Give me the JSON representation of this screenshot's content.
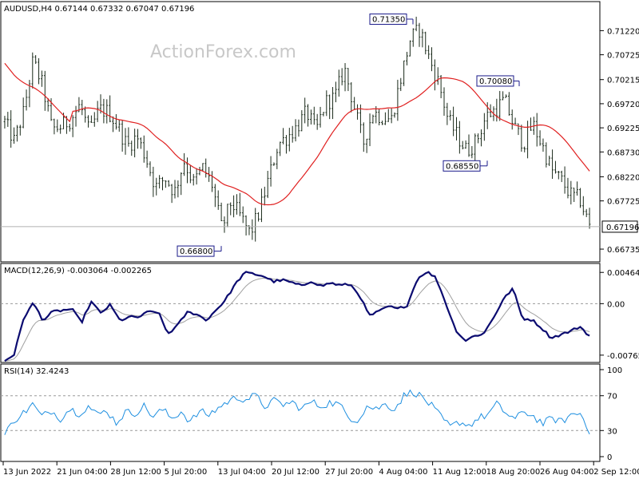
{
  "watermark": "ActionForex.com",
  "colors": {
    "ma": "#e02020",
    "macd": "#0b0b70",
    "signal": "#a0a0a0",
    "rsi": "#1e8fe0",
    "box": "#1a1a8a"
  },
  "chart_data": [
    {
      "type": "candlestick",
      "title": "AUDUSD,H4  0.67144 0.67332 0.67047 0.67196",
      "ylim": [
        0.6649,
        0.718
      ],
      "yticks": [
        "0.71220",
        "0.70725",
        "0.70215",
        "0.69720",
        "0.69225",
        "0.68730",
        "0.68220",
        "0.67725",
        "0.66735"
      ],
      "current_price": "0.67196",
      "annotations": [
        {
          "label": "0.71350",
          "value": 0.7135
        },
        {
          "label": "0.70080",
          "value": 0.7008
        },
        {
          "label": "0.68550",
          "value": 0.6855
        },
        {
          "label": "0.66800",
          "value": 0.668
        }
      ],
      "close_path": [
        0.6935,
        0.6895,
        0.6955,
        0.706,
        0.701,
        0.692,
        0.6925,
        0.694,
        0.697,
        0.691,
        0.696,
        0.6955,
        0.6925,
        0.6885,
        0.6905,
        0.686,
        0.68,
        0.682,
        0.679,
        0.6855,
        0.681,
        0.684,
        0.6805,
        0.6715,
        0.677,
        0.674,
        0.6705,
        0.675,
        0.682,
        0.689,
        0.6905,
        0.6925,
        0.6955,
        0.6915,
        0.6975,
        0.6985,
        0.7045,
        0.697,
        0.689,
        0.6955,
        0.6945,
        0.694,
        0.7025,
        0.7105,
        0.7125,
        0.7065,
        0.7015,
        0.694,
        0.6905,
        0.6875,
        0.6895,
        0.6945,
        0.696,
        0.698,
        0.6925,
        0.689,
        0.693,
        0.6885,
        0.6835,
        0.6815,
        0.6785,
        0.6775,
        0.672
      ]
    },
    {
      "type": "line",
      "title": "MACD(12,26,9) -0.003064 -0.002265",
      "ylim": [
        -0.0085,
        0.0055
      ],
      "yticks": [
        "0.004643",
        "0.00",
        "-0.007653"
      ],
      "macd_path": [
        -0.0085,
        -0.0075,
        -0.002,
        0.0001,
        -0.0025,
        -0.0012,
        -0.001,
        -0.0008,
        -0.0028,
        0.0003,
        -0.0014,
        -0.0002,
        -0.0025,
        -0.002,
        -0.002,
        -0.0012,
        -0.0012,
        -0.0045,
        -0.0033,
        -0.0013,
        -0.0015,
        -0.0025,
        -0.001,
        0.0005,
        0.0028,
        0.0046,
        0.0044,
        0.0041,
        0.0033,
        0.0035,
        0.0031,
        0.0026,
        0.0034,
        0.0026,
        0.0031,
        0.0027,
        0.0029,
        0.0013,
        -0.0018,
        -0.0012,
        -0.0004,
        -0.0008,
        -0.0002,
        0.0036,
        0.0048,
        0.0038,
        0.0001,
        -0.0038,
        -0.0055,
        -0.0048,
        -0.0044,
        -0.002,
        0.0006,
        0.0023,
        -0.0022,
        -0.0024,
        -0.0036,
        -0.0051,
        -0.0046,
        -0.0041,
        -0.0034,
        -0.0048
      ]
    },
    {
      "type": "line",
      "title": "RSI(14) 32.4243",
      "ylim": [
        0,
        100
      ],
      "yticks": [
        "100",
        "70",
        "30",
        "0"
      ],
      "levels": [
        70,
        30
      ],
      "rsi_path": [
        25,
        42,
        50,
        60,
        46,
        53,
        44,
        55,
        50,
        58,
        48,
        53,
        39,
        51,
        50,
        58,
        46,
        54,
        44,
        52,
        40,
        52,
        48,
        56,
        63,
        68,
        66,
        70,
        58,
        64,
        60,
        62,
        55,
        63,
        58,
        62,
        60,
        46,
        42,
        58,
        55,
        60,
        55,
        70,
        75,
        68,
        58,
        45,
        34,
        40,
        36,
        44,
        48,
        60,
        50,
        43,
        52,
        46,
        38,
        44,
        40,
        48,
        50,
        30
      ]
    }
  ],
  "x_labels": [
    "13 Jun 2022",
    "21 Jun 04:00",
    "28 Jun 12:00",
    "5 Jul 20:00",
    "13 Jul 04:00",
    "20 Jul 12:00",
    "27 Jul 20:00",
    "4 Aug 04:00",
    "11 Aug 12:00",
    "18 Aug 20:00",
    "26 Aug 04:00",
    "2 Sep 12:00"
  ]
}
